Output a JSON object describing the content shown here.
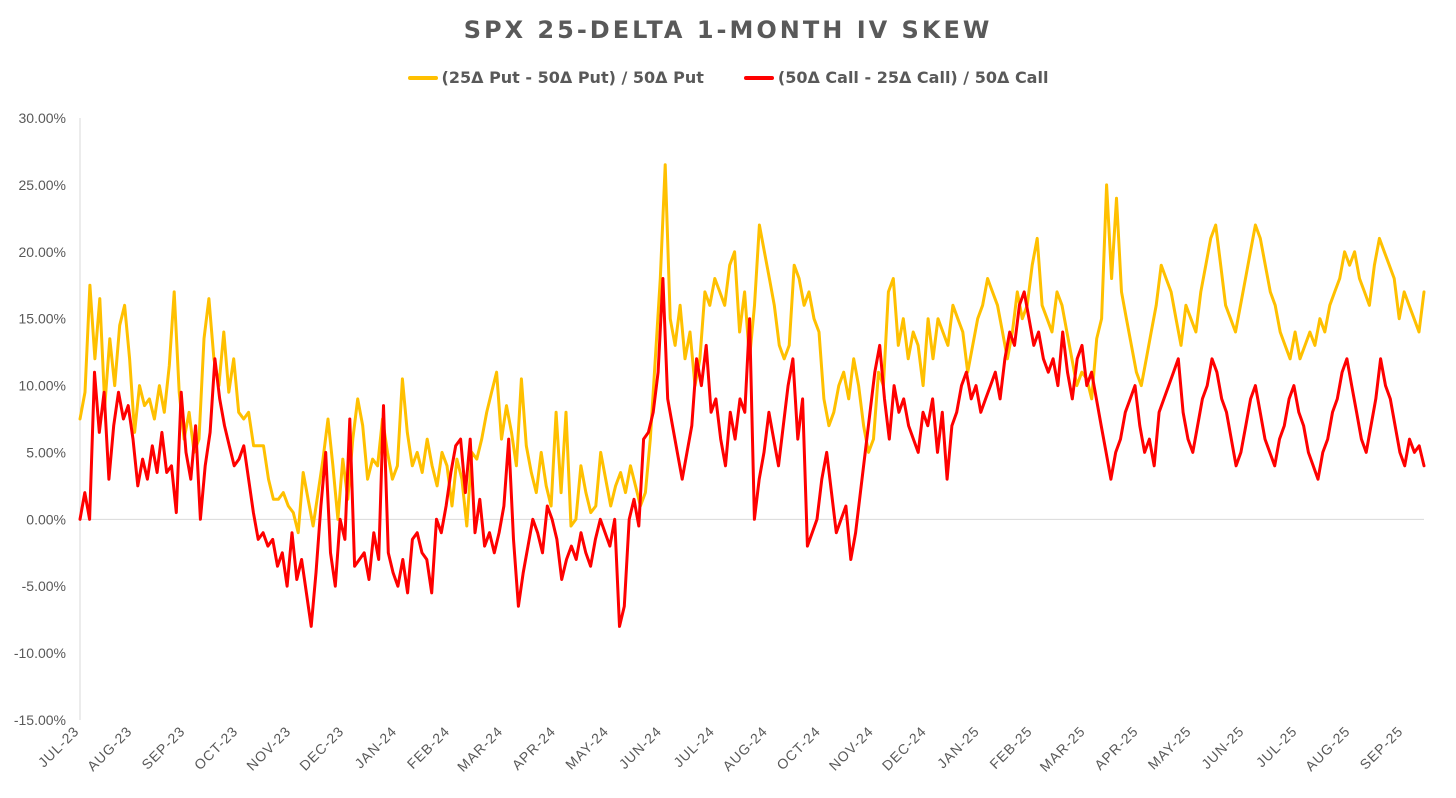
{
  "chart_data": {
    "type": "line",
    "title": "SPX 25-DELTA 1-MONTH IV SKEW",
    "ylim": [
      -15,
      30
    ],
    "ytick_labels": [
      "30.00%",
      "25.00%",
      "20.00%",
      "15.00%",
      "10.00%",
      "5.00%",
      "0.00%",
      "-5.00%",
      "-10.00%",
      "-15.00%"
    ],
    "ytick_values": [
      30,
      25,
      20,
      15,
      10,
      5,
      0,
      -5,
      -10,
      -15
    ],
    "x_tick_labels": [
      "JUL-23",
      "AUG-23",
      "SEP-23",
      "OCT-23",
      "NOV-23",
      "DEC-23",
      "JAN-24",
      "FEB-24",
      "MAR-24",
      "APR-24",
      "MAY-24",
      "JUN-24",
      "JUL-24",
      "AUG-24",
      "OCT-24",
      "NOV-24",
      "DEC-24",
      "JAN-25",
      "FEB-25",
      "MAR-25",
      "APR-25",
      "MAY-25",
      "JUN-25",
      "JUL-25",
      "AUG-25",
      "SEP-25"
    ],
    "grid": false,
    "legend_position": "top-center",
    "series": [
      {
        "name": "(25Δ Put - 50Δ Put) / 50Δ Put",
        "color": "#FFC000",
        "values": [
          7.5,
          9.5,
          17.5,
          12,
          16.5,
          8.5,
          13.5,
          10,
          14.5,
          16,
          12,
          6.5,
          10,
          8.5,
          9,
          7.5,
          10,
          8,
          11.5,
          17,
          9.5,
          6,
          8,
          5,
          6,
          13.5,
          16.5,
          12,
          10,
          14,
          9.5,
          12,
          8,
          7.5,
          8,
          5.5,
          5.5,
          5.5,
          3,
          1.5,
          1.5,
          2,
          1,
          0.5,
          -1,
          3.5,
          1.5,
          -0.5,
          2,
          4.5,
          7.5,
          4,
          0,
          4.5,
          1.5,
          6,
          9,
          7,
          3,
          4.5,
          4,
          7.5,
          5,
          3,
          4,
          10.5,
          6.5,
          4,
          5,
          3.5,
          6,
          4,
          2.5,
          5,
          4,
          1,
          4.5,
          3,
          -0.5,
          5,
          4.5,
          6,
          8,
          9.5,
          11,
          6,
          8.5,
          6.5,
          4,
          10.5,
          5.5,
          3.5,
          2,
          5,
          2.5,
          1,
          8,
          2,
          8,
          -0.5,
          0,
          4,
          2,
          0.5,
          1,
          5,
          3,
          1,
          2.5,
          3.5,
          2,
          4,
          2.5,
          1,
          2,
          6,
          12,
          18,
          26.5,
          15,
          13,
          16,
          12,
          14,
          10,
          12,
          17,
          16,
          18,
          17,
          16,
          19,
          20,
          14,
          17,
          12,
          16,
          22,
          20,
          18,
          16,
          13,
          12,
          13,
          19,
          18,
          16,
          17,
          15,
          14,
          9,
          7,
          8,
          10,
          11,
          9,
          12,
          10,
          7,
          5,
          6,
          11,
          10,
          17,
          18,
          13,
          15,
          12,
          14,
          13,
          10,
          15,
          12,
          15,
          14,
          13,
          16,
          15,
          14,
          11,
          13,
          15,
          16,
          18,
          17,
          16,
          14,
          12,
          14,
          17,
          15,
          16,
          19,
          21,
          16,
          15,
          14,
          17,
          16,
          14,
          12,
          10,
          11,
          10.5,
          9,
          13.5,
          15,
          25,
          18,
          24,
          17,
          15,
          13,
          11,
          10,
          12,
          14,
          16,
          19,
          18,
          17,
          15,
          13,
          16,
          15,
          14,
          17,
          19,
          21,
          22,
          19,
          16,
          15,
          14,
          16,
          18,
          20,
          22,
          21,
          19,
          17,
          16,
          14,
          13,
          12,
          14,
          12,
          13,
          14,
          13,
          15,
          14,
          16,
          17,
          18,
          20,
          19,
          20,
          18,
          17,
          16,
          19,
          21,
          20,
          19,
          18,
          15,
          17,
          16,
          15,
          14,
          17
        ]
      },
      {
        "name": "(50Δ Call - 25Δ Call) / 50Δ Call",
        "color": "#FF0000",
        "values": [
          0,
          2,
          0,
          11,
          6.5,
          9.5,
          3,
          7,
          9.5,
          7.5,
          8.5,
          6,
          2.5,
          4.5,
          3,
          5.5,
          3.5,
          6.5,
          3.5,
          4,
          0.5,
          9.5,
          5,
          3,
          7,
          0,
          4,
          6.5,
          12,
          9,
          7,
          5.5,
          4,
          4.5,
          5.5,
          3,
          0.5,
          -1.5,
          -1,
          -2,
          -1.5,
          -3.5,
          -2.5,
          -5,
          -1,
          -4.5,
          -3,
          -5.5,
          -8,
          -4,
          1,
          5,
          -2.5,
          -5,
          0,
          -1.5,
          7.5,
          -3.5,
          -3,
          -2.5,
          -4.5,
          -1,
          -3,
          8.5,
          -2.5,
          -4,
          -5,
          -3,
          -5.5,
          -1.5,
          -1,
          -2.5,
          -3,
          -5.5,
          0,
          -1,
          1,
          3.5,
          5.5,
          6,
          2,
          6,
          -1,
          1.5,
          -2,
          -1,
          -2.5,
          -1,
          1,
          6,
          -1.5,
          -6.5,
          -4,
          -2,
          0,
          -1,
          -2.5,
          1,
          0,
          -1.5,
          -4.5,
          -3,
          -2,
          -3,
          -1,
          -2.5,
          -3.5,
          -1.5,
          0,
          -1,
          -2,
          0,
          -8,
          -6.5,
          0,
          1.5,
          -0.5,
          6,
          6.5,
          8,
          11,
          18,
          9,
          7,
          5,
          3,
          5,
          7,
          12,
          10,
          13,
          8,
          9,
          6,
          4,
          8,
          6,
          9,
          8,
          15,
          0,
          3,
          5,
          8,
          6,
          4,
          7,
          10,
          12,
          6,
          9,
          -2,
          -1,
          0,
          3,
          5,
          2,
          -1,
          0,
          1,
          -3,
          -1,
          2,
          5,
          8,
          11,
          13,
          9,
          6,
          10,
          8,
          9,
          7,
          6,
          5,
          8,
          7,
          9,
          5,
          8,
          3,
          7,
          8,
          10,
          11,
          9,
          10,
          8,
          9,
          10,
          11,
          9,
          12,
          14,
          13,
          16,
          17,
          15,
          13,
          14,
          12,
          11,
          12,
          10,
          14,
          11,
          9,
          12,
          13,
          10,
          11,
          9,
          7,
          5,
          3,
          5,
          6,
          8,
          9,
          10,
          7,
          5,
          6,
          4,
          8,
          9,
          10,
          11,
          12,
          8,
          6,
          5,
          7,
          9,
          10,
          12,
          11,
          9,
          8,
          6,
          4,
          5,
          7,
          9,
          10,
          8,
          6,
          5,
          4,
          6,
          7,
          9,
          10,
          8,
          7,
          5,
          4,
          3,
          5,
          6,
          8,
          9,
          11,
          12,
          10,
          8,
          6,
          5,
          7,
          9,
          12,
          10,
          9,
          7,
          5,
          4,
          6,
          5,
          5.5,
          4
        ]
      }
    ]
  }
}
